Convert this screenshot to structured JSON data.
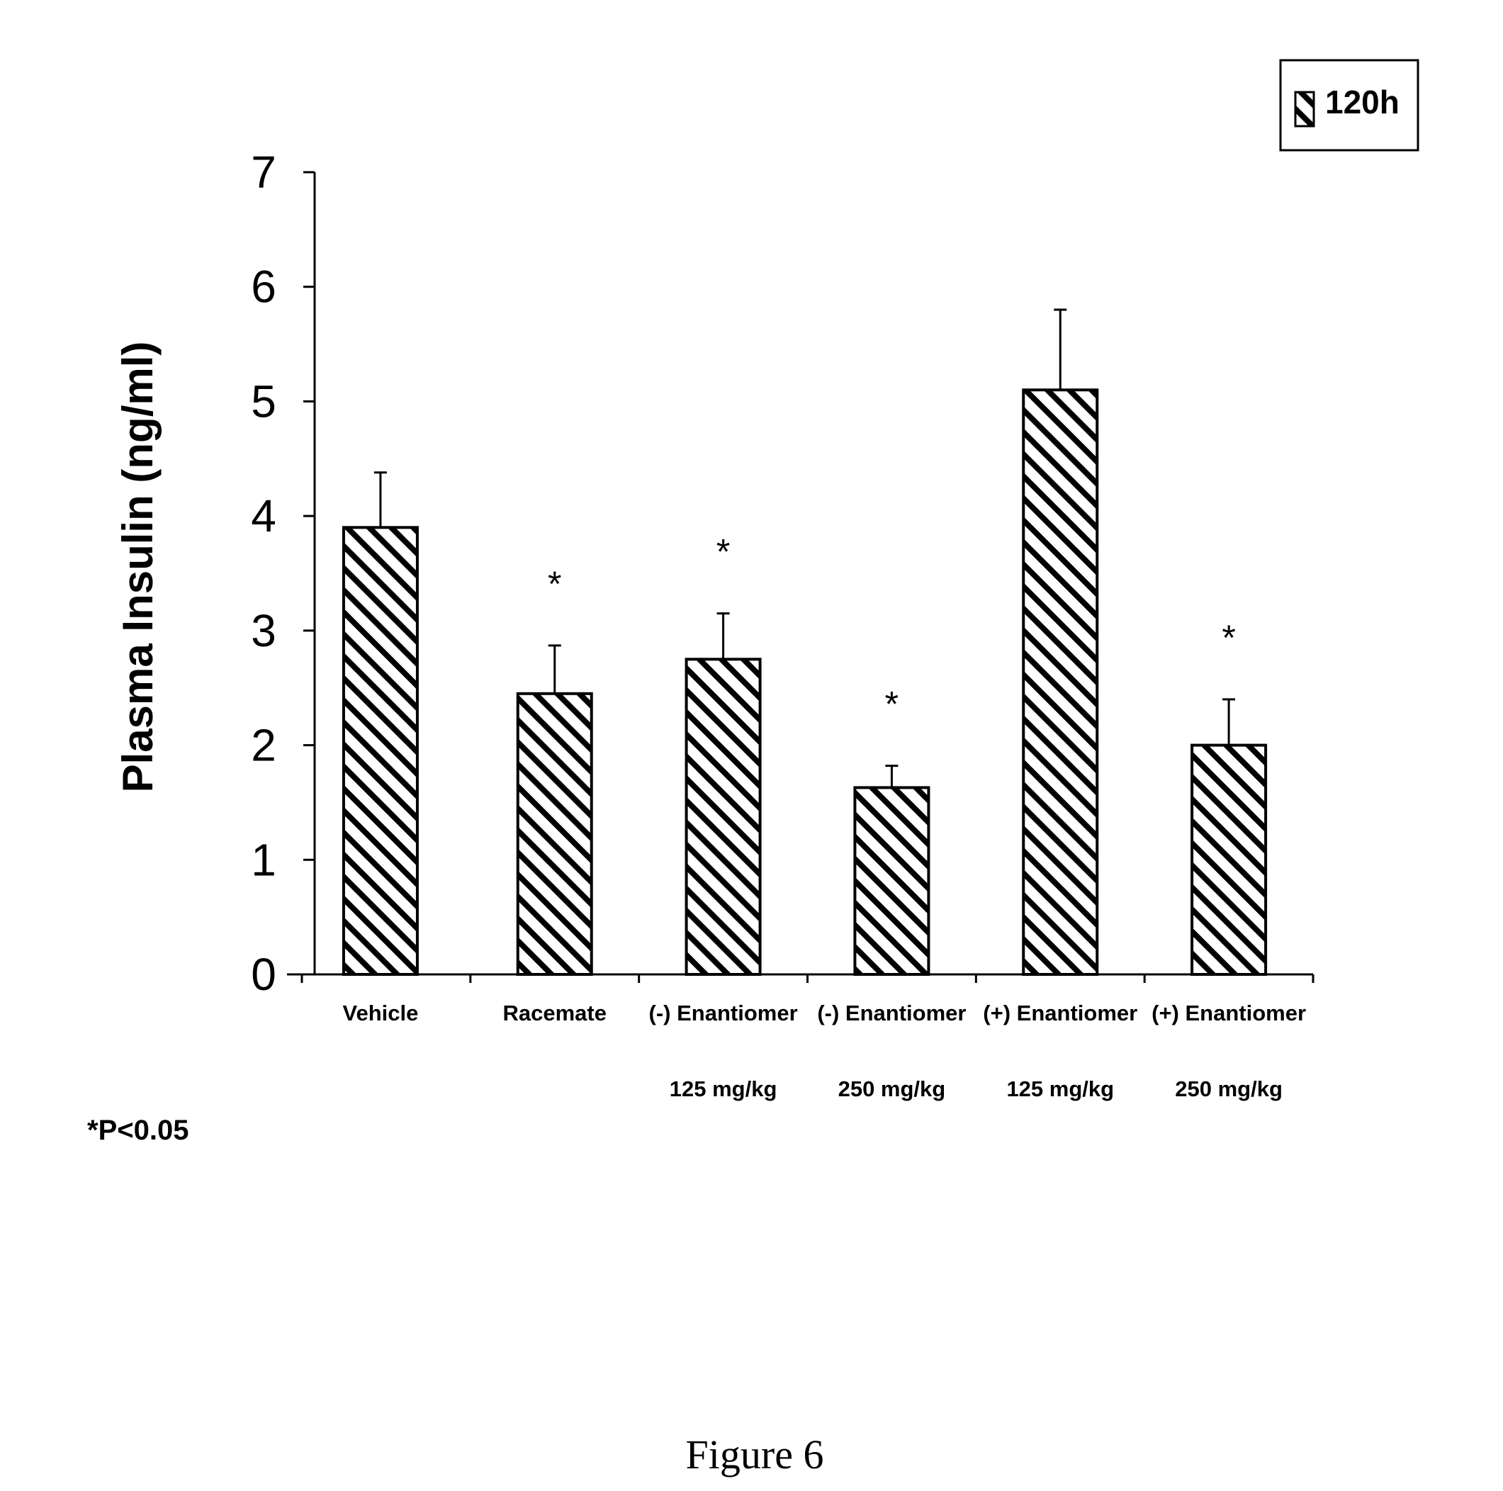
{
  "chart_data": {
    "type": "bar",
    "ylabel": "Plasma Insulin (ng/ml)",
    "xlabel": "",
    "ylim": [
      0,
      7
    ],
    "yticks": [
      0,
      1,
      2,
      3,
      4,
      5,
      6,
      7
    ],
    "grid": false,
    "legend_placement": "top-right",
    "categories": [
      {
        "line1": "Vehicle",
        "line2": ""
      },
      {
        "line1": "Racemate",
        "line2": ""
      },
      {
        "line1": "(-) Enantiomer",
        "line2": "125 mg/kg"
      },
      {
        "line1": "(-) Enantiomer",
        "line2": "250 mg/kg"
      },
      {
        "line1": "(+) Enantiomer",
        "line2": "125 mg/kg"
      },
      {
        "line1": "(+) Enantiomer",
        "line2": "250 mg/kg"
      }
    ],
    "series": [
      {
        "name": "120h",
        "pattern": "diagonal-hatch",
        "values": [
          3.9,
          2.45,
          2.75,
          1.63,
          5.1,
          2.0
        ],
        "error_upper": [
          4.38,
          2.87,
          3.15,
          1.82,
          5.8,
          2.4
        ],
        "significant": [
          false,
          true,
          true,
          true,
          false,
          true
        ]
      }
    ],
    "significance_marker": "*",
    "footnote": "*P<0.05"
  },
  "caption": "Figure 6"
}
